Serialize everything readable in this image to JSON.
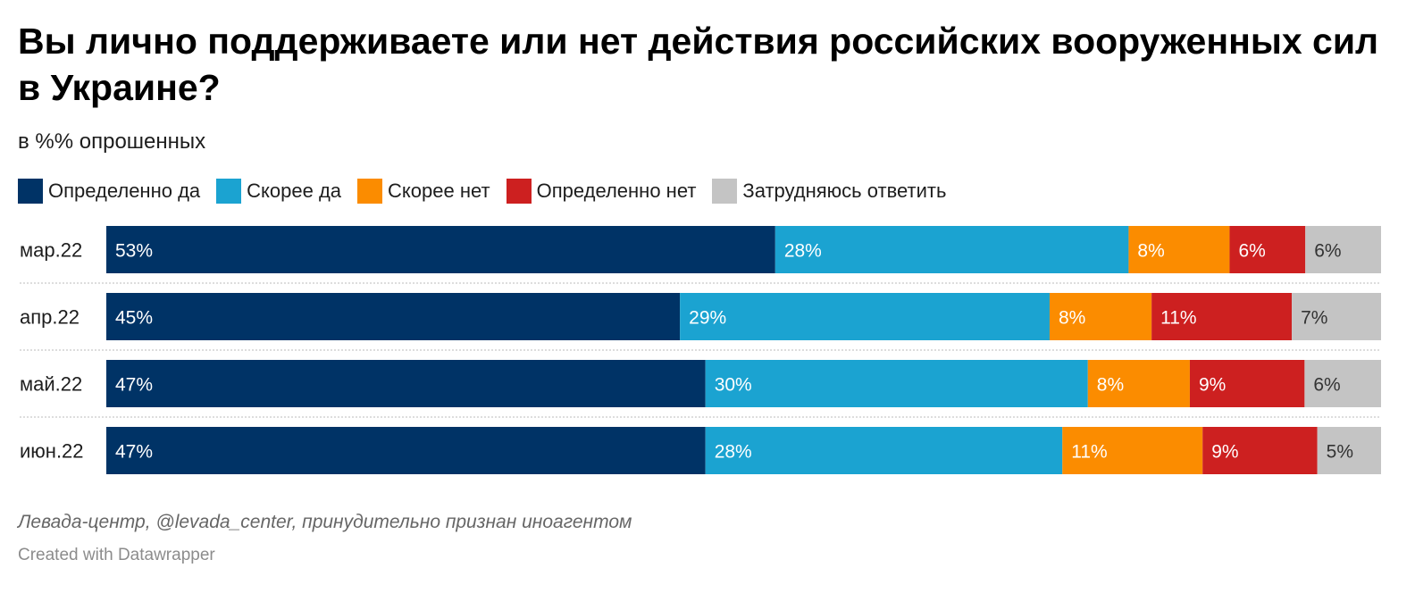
{
  "header": {
    "title": "Вы лично поддерживаете или нет действия российских вооруженных сил в Украине?",
    "subtitle": "в %% опрошенных"
  },
  "legend": [
    {
      "label": "Определенно да",
      "color": "#003366"
    },
    {
      "label": "Скорее да",
      "color": "#1ba3d1"
    },
    {
      "label": "Скорее нет",
      "color": "#fb8c00"
    },
    {
      "label": "Определенно нет",
      "color": "#cd2020"
    },
    {
      "label": "Затрудняюсь ответить",
      "color": "#c4c4c4"
    }
  ],
  "chart_data": {
    "type": "bar",
    "orientation": "horizontal",
    "stacked": true,
    "normalized": true,
    "title": "Вы лично поддерживаете или нет действия российских вооруженных сил в Украине?",
    "subtitle": "в %% опрошенных",
    "categories": [
      "мар.22",
      "апр.22",
      "май.22",
      "июн.22"
    ],
    "series": [
      {
        "name": "Определенно да",
        "color": "#003366",
        "label_color": "#ffffff",
        "values": [
          53,
          45,
          47,
          47
        ]
      },
      {
        "name": "Скорее да",
        "color": "#1ba3d1",
        "label_color": "#ffffff",
        "values": [
          28,
          29,
          30,
          28
        ]
      },
      {
        "name": "Скорее нет",
        "color": "#fb8c00",
        "label_color": "#ffffff",
        "values": [
          8,
          8,
          8,
          11
        ]
      },
      {
        "name": "Определенно нет",
        "color": "#cd2020",
        "label_color": "#ffffff",
        "values": [
          6,
          11,
          9,
          9
        ]
      },
      {
        "name": "Затрудняюсь ответить",
        "color": "#c4c4c4",
        "label_color": "#333333",
        "values": [
          6,
          7,
          6,
          5
        ]
      }
    ],
    "value_suffix": "%",
    "legend_position": "top",
    "grid": false
  },
  "footer": {
    "source": "Левада-центр, @levada_center, принудительно признан иноагентом",
    "credit": "Created with Datawrapper"
  }
}
